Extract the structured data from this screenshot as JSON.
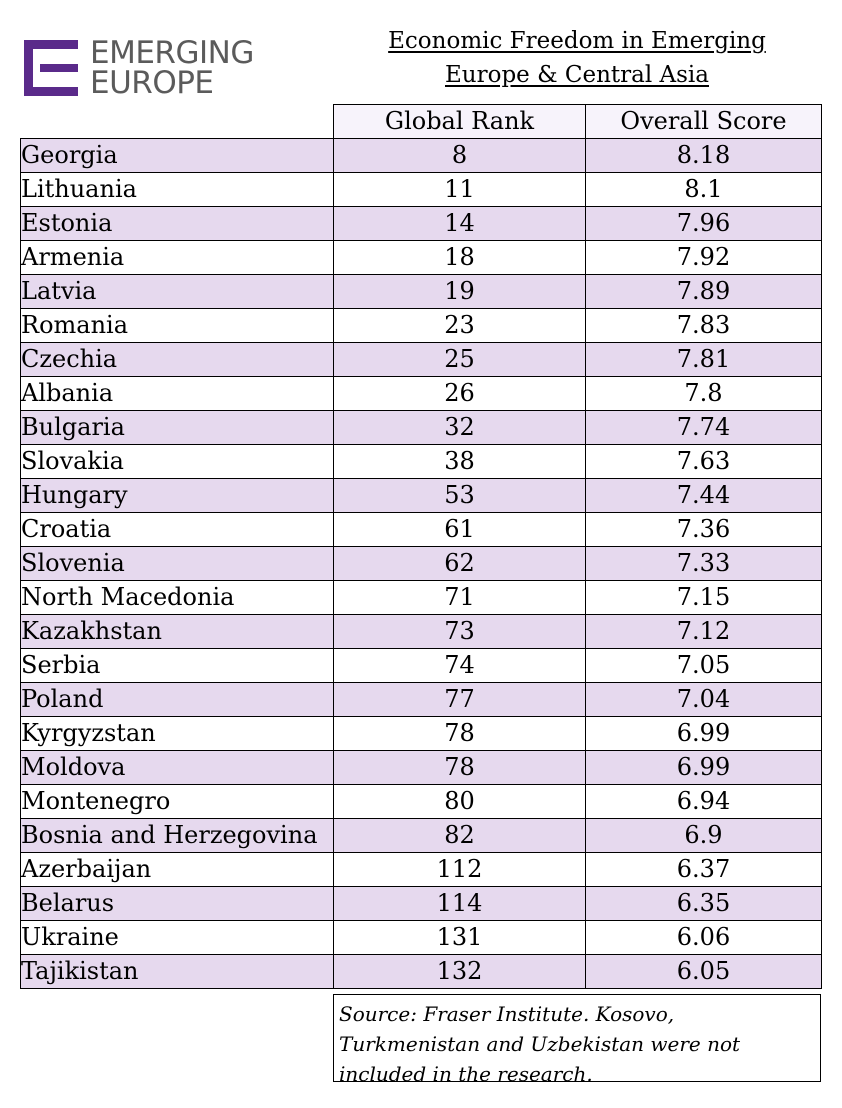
{
  "header": {
    "logo_line1": "EMERGING",
    "logo_line2": "EUROPE",
    "logo_color": "#5a2a8a",
    "title_line1": "Economic Freedom in Emerging",
    "title_line2": "Europe & Central Asia"
  },
  "table": {
    "columns": [
      "",
      "Global Rank",
      "Overall Score"
    ],
    "row_color": "#e6d9ee",
    "rows": [
      [
        "Georgia",
        "8",
        "8.18"
      ],
      [
        "Lithuania",
        "11",
        "8.1"
      ],
      [
        "Estonia",
        "14",
        "7.96"
      ],
      [
        "Armenia",
        "18",
        "7.92"
      ],
      [
        "Latvia",
        "19",
        "7.89"
      ],
      [
        "Romania",
        "23",
        "7.83"
      ],
      [
        "Czechia",
        "25",
        "7.81"
      ],
      [
        "Albania",
        "26",
        "7.8"
      ],
      [
        "Bulgaria",
        "32",
        "7.74"
      ],
      [
        "Slovakia",
        "38",
        "7.63"
      ],
      [
        "Hungary",
        "53",
        "7.44"
      ],
      [
        "Croatia",
        "61",
        "7.36"
      ],
      [
        "Slovenia",
        "62",
        "7.33"
      ],
      [
        "North Macedonia",
        "71",
        "7.15"
      ],
      [
        "Kazakhstan",
        "73",
        "7.12"
      ],
      [
        "Serbia",
        "74",
        "7.05"
      ],
      [
        "Poland",
        "77",
        "7.04"
      ],
      [
        "Kyrgyzstan",
        "78",
        "6.99"
      ],
      [
        "Moldova",
        "78",
        "6.99"
      ],
      [
        "Montenegro",
        "80",
        "6.94"
      ],
      [
        "Bosnia and Herzegovina",
        "82",
        "6.9"
      ],
      [
        "Azerbaijan",
        "112",
        "6.37"
      ],
      [
        "Belarus",
        "114",
        "6.35"
      ],
      [
        "Ukraine",
        "131",
        "6.06"
      ],
      [
        "Tajikistan",
        "132",
        "6.05"
      ]
    ]
  },
  "footer": {
    "source": "Source: Fraser Institute. Kosovo, Turkmenistan and Uzbekistan were not included in the research."
  },
  "chart_data": {
    "type": "table",
    "title": "Economic Freedom in Emerging Europe & Central Asia",
    "columns": [
      "",
      "Global Rank",
      "Overall Score"
    ],
    "categories": [
      "Georgia",
      "Lithuania",
      "Estonia",
      "Armenia",
      "Latvia",
      "Romania",
      "Czechia",
      "Albania",
      "Bulgaria",
      "Slovakia",
      "Hungary",
      "Croatia",
      "Slovenia",
      "North Macedonia",
      "Kazakhstan",
      "Serbia",
      "Poland",
      "Kyrgyzstan",
      "Moldova",
      "Montenegro",
      "Bosnia and Herzegovina",
      "Azerbaijan",
      "Belarus",
      "Ukraine",
      "Tajikistan"
    ],
    "series": [
      {
        "name": "Global Rank",
        "values": [
          8,
          11,
          14,
          18,
          19,
          23,
          25,
          26,
          32,
          38,
          53,
          61,
          62,
          71,
          73,
          74,
          77,
          78,
          78,
          80,
          82,
          112,
          114,
          131,
          132
        ]
      },
      {
        "name": "Overall Score",
        "values": [
          8.18,
          8.1,
          7.96,
          7.92,
          7.89,
          7.83,
          7.81,
          7.8,
          7.74,
          7.63,
          7.44,
          7.36,
          7.33,
          7.15,
          7.12,
          7.05,
          7.04,
          6.99,
          6.99,
          6.94,
          6.9,
          6.37,
          6.35,
          6.06,
          6.05
        ]
      }
    ]
  }
}
